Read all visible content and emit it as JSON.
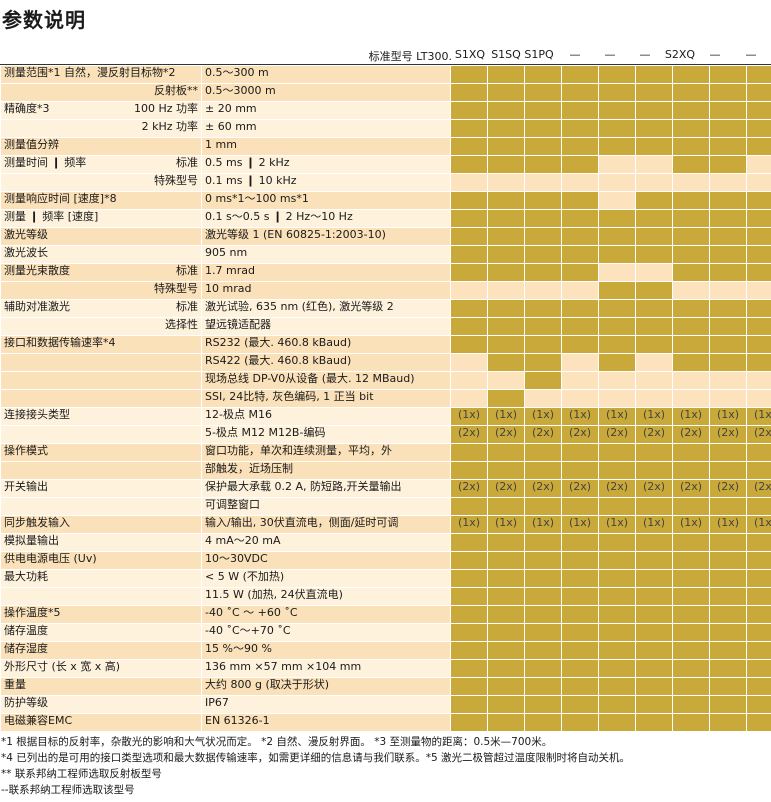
{
  "page_title": "参数说明",
  "header": {
    "model_label": "标准型号 LT300.",
    "columns": [
      "S1XQ",
      "S1SQ",
      "S1PQ",
      "—",
      "—",
      "—",
      "S2XQ",
      "—",
      "—"
    ]
  },
  "rows": [
    {
      "label": "测量范围*1  自然，漫反射目标物*2",
      "right": "",
      "value": "0.5～300 m",
      "bg": "bg1",
      "cells": "YYYYYYYYY"
    },
    {
      "label": "",
      "right": "反射板**",
      "value": "0.5～3000 m",
      "bg": "bg1",
      "cells": "YYYYYYYYY"
    },
    {
      "label": "精确度*3",
      "right": "100 Hz 功率",
      "value": "± 20 mm",
      "bg": "bg2",
      "cells": "YYYYYYYYY"
    },
    {
      "label": "",
      "right": "2 kHz 功率",
      "value": "± 60 mm",
      "bg": "bg2",
      "cells": "YYYYYYYYY"
    },
    {
      "label": "测量值分辨",
      "right": "",
      "value": "1 mm",
      "bg": "bg1",
      "cells": "YYYYYYYYY"
    },
    {
      "label": "测量时间 ❙ 频率",
      "right": "标准",
      "value": "0.5 ms ❙ 2 kHz",
      "bg": "bg2",
      "cells": "YYYYLLYYL"
    },
    {
      "label": "",
      "right": "特殊型号",
      "value": "0.1 ms ❙ 10 kHz",
      "bg": "bg2",
      "cells": "LLLLLLLLL"
    },
    {
      "label": "测量响应时间 [速度]*8",
      "right": "",
      "value": "0 ms*1～100 ms*1",
      "bg": "bg1",
      "cells": "YYYYLYYYY"
    },
    {
      "label": "测量 ❙ 频率 [速度]",
      "right": "",
      "value": "0.1 s～0.5 s ❙ 2 Hz～10 Hz",
      "bg": "bg2",
      "cells": "YYYYYYYYY"
    },
    {
      "label": "激光等级",
      "right": "",
      "value": "激光等级 1 (EN 60825-1:2003-10)",
      "bg": "bg1",
      "cells": "YYYYYYYYY"
    },
    {
      "label": "激光波长",
      "right": "",
      "value": "905 nm",
      "bg": "bg2",
      "cells": "YYYYYYYYY"
    },
    {
      "label": "测量光束散度",
      "right": "标准",
      "value": "1.7 mrad",
      "bg": "bg1",
      "cells": "YYYYLLYYY"
    },
    {
      "label": "",
      "right": "特殊型号",
      "value": "10 mrad",
      "bg": "bg1",
      "cells": "LLLLYYLLL"
    },
    {
      "label": "辅助对准激光",
      "right": "标准",
      "value": "激光试验, 635 nm (红色), 激光等级 2",
      "bg": "bg2",
      "cells": "YYYYYYYYY"
    },
    {
      "label": "",
      "right": "选择性",
      "value": "望远镜适配器",
      "bg": "bg2",
      "cells": "YYYYYYYYY"
    },
    {
      "label": "接口和数据传输速率*4",
      "right": "",
      "value": "RS232 (最大. 460.8 kBaud)",
      "bg": "bg1",
      "cells": "YYYYYYYYY"
    },
    {
      "label": "",
      "right": "",
      "value": "RS422 (最大. 460.8 kBaud)",
      "bg": "bg1",
      "cells": "LYYLYLYYY"
    },
    {
      "label": "",
      "right": "",
      "value": "现场总线 DP-V0从设备 (最大. 12 MBaud)",
      "bg": "bg1",
      "cells": "LLYLLLLLL"
    },
    {
      "label": "",
      "right": "",
      "value": "SSI, 24比特, 灰色编码, 1 正当 bit",
      "bg": "bg1",
      "cells": "LYLLLLLLL"
    },
    {
      "label": "连接接头类型",
      "right": "",
      "value": "12-极点 M16",
      "bg": "bg2",
      "cells": "YYYYYYYYY"
    },
    {
      "label": "",
      "right": "",
      "value": "5-极点 M12    M12B-编码",
      "bg": "bg2",
      "cells": "YYYYYYYYY"
    },
    {
      "label": "操作模式",
      "right": "",
      "value": "窗口功能，单次和连续测量，平均，外",
      "bg": "bg1",
      "cells": "YYYYYYYYY"
    },
    {
      "label": "",
      "right": "",
      "value": "部触发，近场压制",
      "bg": "bg1",
      "cells": "YYYYYYYYY"
    },
    {
      "label": "开关输出",
      "right": "",
      "value": "保护最大承载 0.2 A, 防短路,开关量输出",
      "bg": "bg2",
      "cells": "YYYYYYYYY"
    },
    {
      "label": "",
      "right": "",
      "value": "可调整窗口",
      "bg": "bg2",
      "cells": "YYYYYYYYY"
    },
    {
      "label": "同步触发输入",
      "right": "",
      "value": "输入/输出, 30伏直流电，侧面/延时可调",
      "bg": "bg1",
      "cells": "YYYYYYYYY"
    },
    {
      "label": "模拟量输出",
      "right": "",
      "value": "4 mA～20 mA",
      "bg": "bg2",
      "cells": "YYYYYYYYY"
    },
    {
      "label": "供电电源电压 (Uv)",
      "right": "",
      "value": "10～30VDC",
      "bg": "bg1",
      "cells": "YYYYYYYYY"
    },
    {
      "label": "最大功耗",
      "right": "",
      "value": "< 5 W (不加热)",
      "bg": "bg2",
      "cells": "YYYYYYYYY"
    },
    {
      "label": "",
      "right": "",
      "value": "11.5 W (加热, 24伏直流电)",
      "bg": "bg2",
      "cells": "YYYYYYYYY"
    },
    {
      "label": "操作温度*5",
      "right": "",
      "value": "-40 ˚C ～ +60 ˚C",
      "bg": "bg1",
      "cells": "YYYYYYYYY"
    },
    {
      "label": "储存温度",
      "right": "",
      "value": "-40 ˚C～+70 ˚C",
      "bg": "bg2",
      "cells": "YYYYYYYYY"
    },
    {
      "label": "储存湿度",
      "right": "",
      "value": "15 %～90 %",
      "bg": "bg1",
      "cells": "YYYYYYYYY"
    },
    {
      "label": "外形尺寸 (长 x 宽 x 高)",
      "right": "",
      "value": "136 mm ×57 mm ×104 mm",
      "bg": "bg2",
      "cells": "YYYYYYYYY"
    },
    {
      "label": "重量",
      "right": "",
      "value": "大约 800 g (取决于形状)",
      "bg": "bg1",
      "cells": "YYYYYYYYY"
    },
    {
      "label": "防护等级",
      "right": "",
      "value": "IP67",
      "bg": "bg2",
      "cells": "YYYYYYYYY"
    },
    {
      "label": "电磁兼容EMC",
      "right": "",
      "value": "EN 61326-1",
      "bg": "bg1",
      "cells": "YYYYYYYYY"
    }
  ],
  "marks": {
    "19": "(1x)",
    "20": "(2x)",
    "23": "(2x)",
    "25": "(1x)"
  },
  "footnotes": [
    "*1 根据目标的反射率，杂散光的影响和大气状况而定。    *2 自然、漫反射界面。 *3 至测量物的距离：0.5米—700米。",
    "*4 已列出的是可用的接口类型选项和最大数据传输速率，如需更详细的信息请与我们联系。*5 激光二极管超过温度限制时将自动关机。",
    "** 联系邦纳工程师选取反射板型号",
    "--联系邦纳工程师选取该型号"
  ],
  "colors": {
    "yes": "#c9a93a",
    "no": "#fce3bd",
    "row_a": "#fbe1b9",
    "row_b": "#fff2dc"
  }
}
